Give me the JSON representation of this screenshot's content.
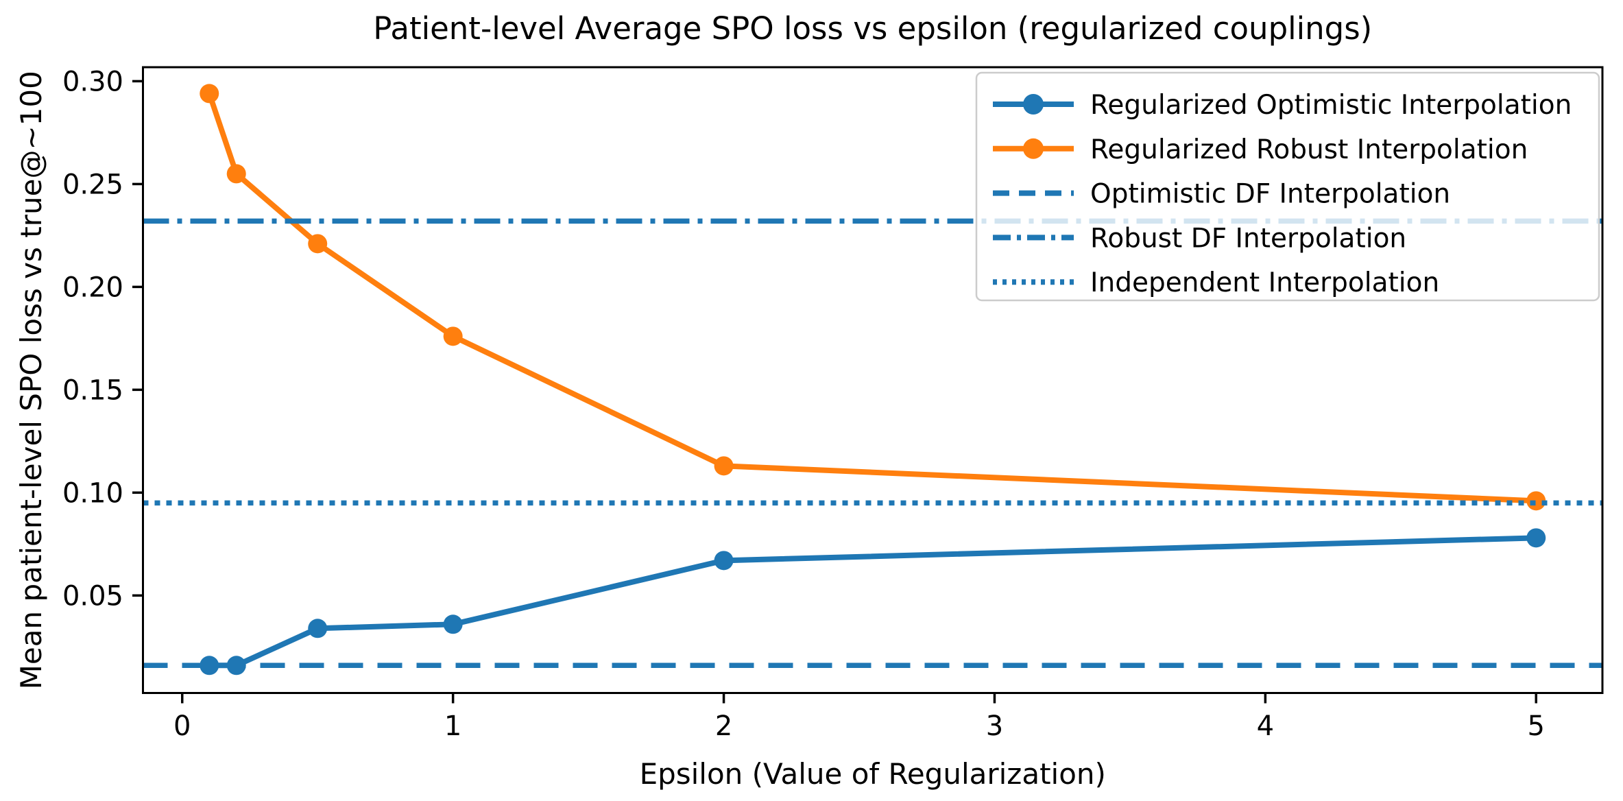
{
  "figure": {
    "title": "Patient-level Average SPO loss vs epsilon (regularized couplings)"
  },
  "chart_data": {
    "type": "line",
    "title": "Patient-level Average SPO loss vs epsilon (regularized couplings)",
    "xlabel": "Epsilon (Value of Regularization)",
    "ylabel": "Mean patient-level SPO loss vs true@~100",
    "x": [
      0.1,
      0.2,
      0.5,
      1.0,
      2.0,
      5.0
    ],
    "series": [
      {
        "name": "Regularized Optimistic Interpolation",
        "color": "#1f77b4",
        "linestyle": "solid",
        "marker": "circle",
        "values": [
          0.016,
          0.016,
          0.034,
          0.036,
          0.067,
          0.078
        ]
      },
      {
        "name": "Regularized Robust Interpolation",
        "color": "#ff7f0e",
        "linestyle": "solid",
        "marker": "circle",
        "values": [
          0.294,
          0.255,
          0.221,
          0.176,
          0.113,
          0.096
        ]
      }
    ],
    "hlines": [
      {
        "name": "Optimistic DF Interpolation",
        "color": "#1f77b4",
        "linestyle": "dashed",
        "value": 0.016
      },
      {
        "name": "Robust DF Interpolation",
        "color": "#1f77b4",
        "linestyle": "dashdot",
        "value": 0.232
      },
      {
        "name": "Independent Interpolation",
        "color": "#1f77b4",
        "linestyle": "dotted",
        "value": 0.095
      }
    ],
    "xticks": [
      0,
      1,
      2,
      3,
      4,
      5
    ],
    "xtick_labels": [
      "0",
      "1",
      "2",
      "3",
      "4",
      "5"
    ],
    "yticks": [
      0.05,
      0.1,
      0.15,
      0.2,
      0.25,
      0.3
    ],
    "ytick_labels": [
      "0.05",
      "0.10",
      "0.15",
      "0.20",
      "0.25",
      "0.30"
    ],
    "xlim": [
      -0.145,
      5.245
    ],
    "ylim": [
      0.0026,
      0.3068
    ],
    "grid": false,
    "legend": {
      "position": "upper right"
    },
    "colors": {
      "axis": "#000000",
      "text": "#000000",
      "legend_border": "#cccccc",
      "background": "#ffffff"
    }
  }
}
